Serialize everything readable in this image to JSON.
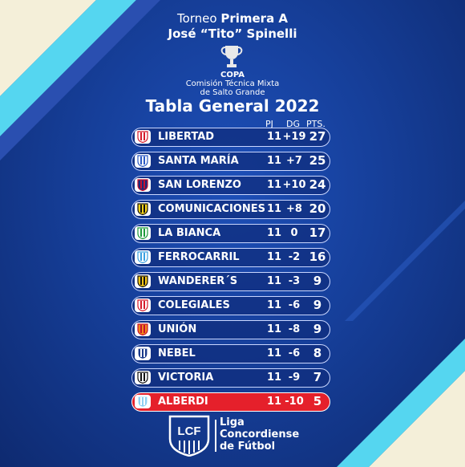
{
  "header": {
    "line1_prefix": "Torneo ",
    "line1_bold": "Primera A",
    "line2": "José “Tito” Spinelli"
  },
  "copa": {
    "title": "COPA",
    "line1": "Comisión Técnica Mixta",
    "line2": "de Salto Grande"
  },
  "table_title": "Tabla General 2022",
  "columns": {
    "pj": "PJ",
    "dg": "DG",
    "pts": "PTS."
  },
  "rows": [
    {
      "team": "LIBERTAD",
      "pj": "11",
      "dg": "+19",
      "pts": "27",
      "badge_colors": [
        "#ffffff",
        "#d51b2b"
      ]
    },
    {
      "team": "SANTA MARÍA",
      "pj": "11",
      "dg": "+7",
      "pts": "25",
      "badge_colors": [
        "#ffffff",
        "#2b59c3"
      ]
    },
    {
      "team": "SAN LORENZO",
      "pj": "11",
      "dg": "+10",
      "pts": "24",
      "badge_colors": [
        "#1b2a7a",
        "#c8102e"
      ]
    },
    {
      "team": "COMUNICACIONES",
      "pj": "11",
      "dg": "+8",
      "pts": "20",
      "badge_colors": [
        "#f6d21a",
        "#111111"
      ]
    },
    {
      "team": "LA BIANCA",
      "pj": "11",
      "dg": "0",
      "pts": "17",
      "badge_colors": [
        "#ffffff",
        "#1c9a3a"
      ]
    },
    {
      "team": "FERROCARRIL",
      "pj": "11",
      "dg": "-2",
      "pts": "16",
      "badge_colors": [
        "#ffffff",
        "#3aa0e0"
      ]
    },
    {
      "team": "WANDERER´S",
      "pj": "11",
      "dg": "-3",
      "pts": "9",
      "badge_colors": [
        "#f5c518",
        "#111111"
      ]
    },
    {
      "team": "COLEGIALES",
      "pj": "11",
      "dg": "-6",
      "pts": "9",
      "badge_colors": [
        "#ffffff",
        "#d51b2b"
      ]
    },
    {
      "team": "UNIÓN",
      "pj": "11",
      "dg": "-8",
      "pts": "9",
      "badge_colors": [
        "#f08a1c",
        "#c8102e"
      ]
    },
    {
      "team": "NEBEL",
      "pj": "11",
      "dg": "-6",
      "pts": "8",
      "badge_colors": [
        "#1b3a8a",
        "#ffffff"
      ]
    },
    {
      "team": "VICTORIA",
      "pj": "11",
      "dg": "-9",
      "pts": "7",
      "badge_colors": [
        "#ffffff",
        "#111111"
      ]
    },
    {
      "team": "ALBERDI",
      "pj": "11",
      "dg": "-10",
      "pts": "5",
      "badge_colors": [
        "#8fd0f2",
        "#ffffff"
      ]
    }
  ],
  "footer": {
    "logo_text": "LCF",
    "line1": "Liga",
    "line2": "Concordiense",
    "line3": "de Fútbol"
  },
  "colors": {
    "background": "#163f9a",
    "stripe_cream": "#f4efd9",
    "stripe_cyan": "#55d6f0",
    "relegation_row": "#e5202b"
  }
}
